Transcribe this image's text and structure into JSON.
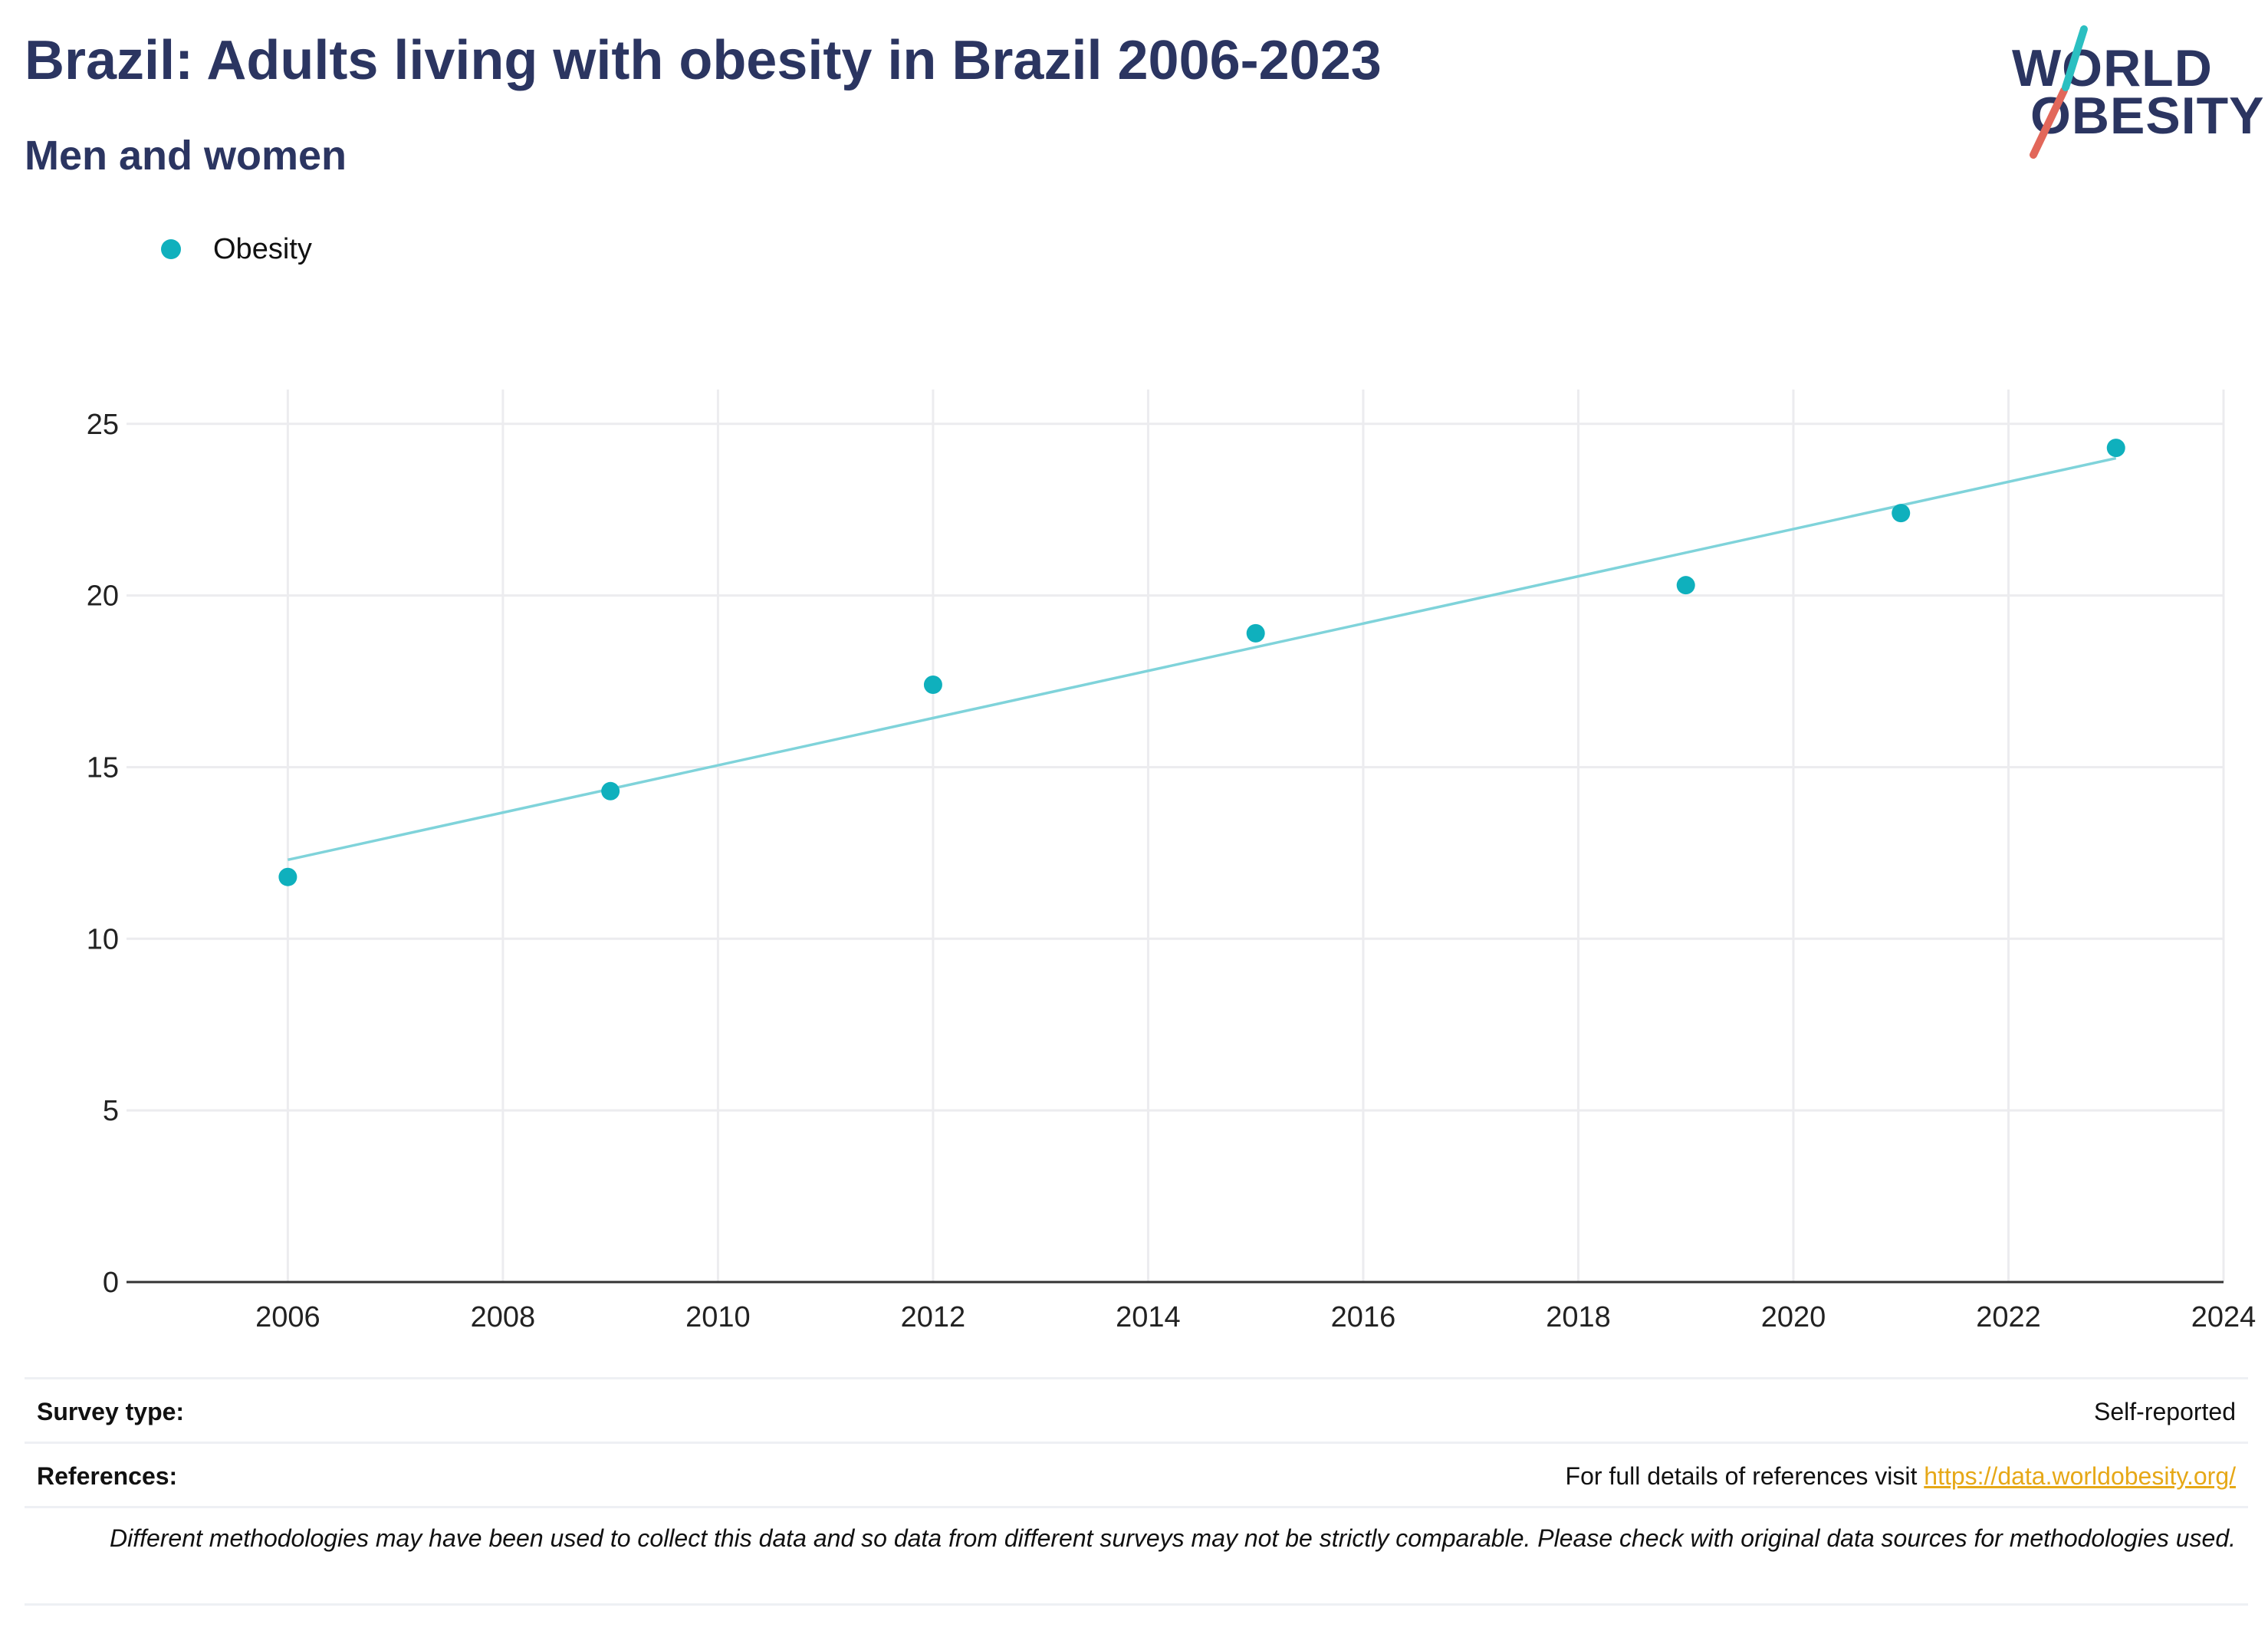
{
  "header": {
    "title": "Brazil: Adults living with obesity in Brazil 2006-2023",
    "subtitle": "Men and women"
  },
  "logo": {
    "line1": "WORLD",
    "line2": "OBESITY"
  },
  "colors": {
    "accent": "#0fb0bd",
    "trendline": "#7fd3da",
    "title": "#2b3561",
    "link": "#e6a817",
    "logo_red": "#e2675a",
    "logo_teal": "#2bbfc1"
  },
  "chart_data": {
    "type": "scatter",
    "legend": {
      "entries": [
        "Obesity"
      ],
      "placement": "top-left"
    },
    "series": [
      {
        "name": "Obesity",
        "x": [
          2006,
          2009,
          2012,
          2015,
          2019,
          2021,
          2023
        ],
        "y": [
          11.8,
          14.3,
          17.4,
          18.9,
          20.3,
          22.4,
          24.3
        ]
      }
    ],
    "trendline": {
      "x": [
        2006,
        2023
      ],
      "y": [
        12.3,
        24.0
      ]
    },
    "xlim": [
      2004.5,
      2024
    ],
    "ylim": [
      0,
      26
    ],
    "x_ticks": [
      "2006",
      "2008",
      "2010",
      "2012",
      "2014",
      "2016",
      "2018",
      "2020",
      "2022",
      "2024"
    ],
    "y_ticks": [
      "0",
      "5",
      "10",
      "15",
      "20",
      "25"
    ],
    "grid": true
  },
  "footer": {
    "survey_type_label": "Survey type:",
    "survey_type_value": "Self-reported",
    "references_label": "References:",
    "references_text": "For full details of references visit ",
    "references_link": "https://data.worldobesity.org/",
    "note": "Different methodologies may have been used to collect this data and so data from different surveys may not be strictly comparable. Please check with original data sources for methodologies used."
  }
}
